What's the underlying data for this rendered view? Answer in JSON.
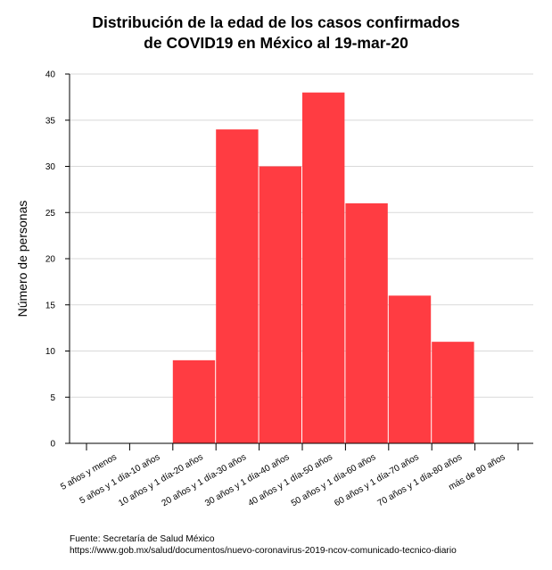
{
  "chart_data": {
    "type": "bar",
    "title": [
      "Distribución de la edad de los casos confirmados",
      "de COVID19 en México al 19-mar-20"
    ],
    "xlabel": "",
    "ylabel": "Número de personas",
    "ylim": [
      0,
      40
    ],
    "yticks": [
      0,
      5,
      10,
      15,
      20,
      25,
      30,
      35,
      40
    ],
    "grid": true,
    "bar_color": "#ff3c42",
    "categories": [
      "5 años y menos",
      "5 años y 1 día-10 años",
      "10 años y 1 día-20 años",
      "20 años y 1 día-30 años",
      "30 años y 1 día-40 años",
      "40 años y 1 día-50 años",
      "50 años y 1 día-60 años",
      "60 años y 1 día-70 años",
      "70 años y 1 día-80 años",
      "más de 80 años"
    ],
    "values": [
      0,
      0,
      9,
      34,
      30,
      38,
      26,
      16,
      11,
      0
    ]
  },
  "source": {
    "line1": "Fuente: Secretaría de Salud México",
    "line2": "https://www.gob.mx/salud/documentos/nuevo-coronavirus-2019-ncov-comunicado-tecnico-diario"
  }
}
